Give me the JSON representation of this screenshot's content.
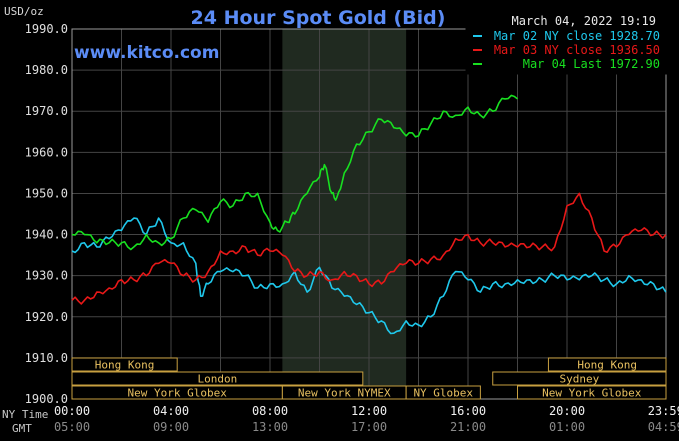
{
  "chart_data": {
    "type": "line",
    "title": "24 Hour Spot Gold (Bid)",
    "ylabel": "USD/oz",
    "watermark": "www.kitco.com",
    "datetime": "March 04, 2022 19:19",
    "ylim": [
      1900,
      1990
    ],
    "yticks": [
      "1900.0",
      "1910.0",
      "1920.0",
      "1930.0",
      "1940.0",
      "1950.0",
      "1960.0",
      "1970.0",
      "1980.0",
      "1990.0"
    ],
    "xlim": [
      0,
      24
    ],
    "xticks_ny": [
      "00:00",
      "04:00",
      "08:00",
      "12:00",
      "16:00",
      "20:00",
      "23:59"
    ],
    "xticks_gmt": [
      "05:00",
      "09:00",
      "13:00",
      "17:00",
      "21:00",
      "01:00",
      "04:59"
    ],
    "x_axis_labels": [
      "NY Time",
      "GMT"
    ],
    "highlight_hours": [
      8.5,
      13.5
    ],
    "grid": true,
    "legend_position": "top-right",
    "series": [
      {
        "name": "Mar 02 NY close 1928.70",
        "color": "#1fc8ec",
        "x": [
          0,
          0.5,
          1,
          1.5,
          2,
          2.5,
          3,
          3.5,
          4,
          4.5,
          5,
          5.2,
          5.5,
          6,
          6.5,
          7,
          7.5,
          8,
          8.5,
          9,
          9.5,
          10,
          10.5,
          11,
          11.5,
          12,
          12.5,
          13,
          13.5,
          14,
          14.5,
          15,
          15.5,
          16,
          16.5,
          17,
          17.5,
          18,
          18.5,
          19,
          19.5,
          20,
          20.5,
          21,
          21.5,
          22,
          22.5,
          23,
          23.5,
          23.99
        ],
        "y": [
          1936,
          1938,
          1937,
          1939,
          1941,
          1944,
          1940,
          1944,
          1938,
          1938,
          1933,
          1925,
          1928,
          1931,
          1931,
          1930,
          1927,
          1928,
          1928,
          1931,
          1926,
          1932,
          1927,
          1925,
          1923,
          1921,
          1919,
          1916,
          1919,
          1918,
          1920,
          1925,
          1931,
          1929,
          1926,
          1928,
          1928,
          1929,
          1929,
          1929,
          1930,
          1929,
          1929,
          1930,
          1929,
          1928,
          1930,
          1929,
          1928,
          1926
        ]
      },
      {
        "name": "Mar 03 NY close 1936.50",
        "color": "#e81818",
        "x": [
          0,
          0.5,
          1,
          1.5,
          2,
          2.5,
          3,
          3.5,
          4,
          4.5,
          5,
          5.5,
          6,
          6.5,
          7,
          7.5,
          8,
          8.5,
          9,
          9.5,
          10,
          10.5,
          11,
          11.5,
          12,
          12.5,
          13,
          13.5,
          14,
          14.5,
          15,
          15.5,
          16,
          16.5,
          17,
          17.5,
          18,
          18.5,
          19,
          19.5,
          20,
          20.5,
          21,
          21.5,
          22,
          22.5,
          23,
          23.5,
          23.99
        ],
        "y": [
          1924,
          1924,
          1926,
          1927,
          1929,
          1929,
          1930,
          1933,
          1933,
          1930,
          1929,
          1931,
          1936,
          1936,
          1937,
          1935,
          1936,
          1935,
          1931,
          1930,
          1931,
          1929,
          1931,
          1930,
          1928,
          1928,
          1931,
          1933,
          1933,
          1934,
          1935,
          1939,
          1940,
          1938,
          1938,
          1937,
          1937,
          1937,
          1937,
          1937,
          1947,
          1950,
          1944,
          1936,
          1937,
          1940,
          1941,
          1940,
          1940
        ]
      },
      {
        "name": "Mar 04 Last 1972.90",
        "color": "#18e020",
        "x": [
          0,
          0.5,
          1,
          1.5,
          2,
          2.5,
          3,
          3.5,
          4,
          4.5,
          5,
          5.5,
          6,
          6.5,
          7,
          7.5,
          8,
          8.3,
          8.7,
          9,
          9.5,
          10,
          10.2,
          10.5,
          10.7,
          11,
          11.5,
          12,
          12.5,
          13,
          13.5,
          14,
          14.5,
          15,
          15.5,
          16,
          16.5,
          17,
          17.5,
          18
        ],
        "y": [
          1940,
          1940,
          1938,
          1938,
          1938,
          1937,
          1940,
          1938,
          1939,
          1944,
          1946,
          1943,
          1948,
          1947,
          1950,
          1950,
          1943,
          1941,
          1943,
          1945,
          1950,
          1954,
          1957,
          1950,
          1949,
          1955,
          1962,
          1965,
          1968,
          1966,
          1964,
          1964,
          1967,
          1970,
          1969,
          1971,
          1969,
          1970,
          1973,
          1973
        ]
      }
    ],
    "sessions": [
      {
        "name": "Hong Kong",
        "start": 0,
        "end": 4.25,
        "row": 0
      },
      {
        "name": "London",
        "start": 0,
        "end": 11.75,
        "row": 1
      },
      {
        "name": "New York Globex",
        "start": 0,
        "end": 8.5,
        "row": 2
      },
      {
        "name": "New York NYMEX",
        "start": 8.5,
        "end": 13.5,
        "row": 2
      },
      {
        "name": "NY Globex",
        "start": 13.5,
        "end": 16.5,
        "row": 2
      },
      {
        "name": "New York Globex",
        "start": 18,
        "end": 24,
        "row": 2
      },
      {
        "name": "Hong Kong",
        "start": 19.25,
        "end": 24,
        "row": 0
      },
      {
        "name": "Sydney",
        "start": 17,
        "end": 24,
        "row": 1
      }
    ]
  }
}
